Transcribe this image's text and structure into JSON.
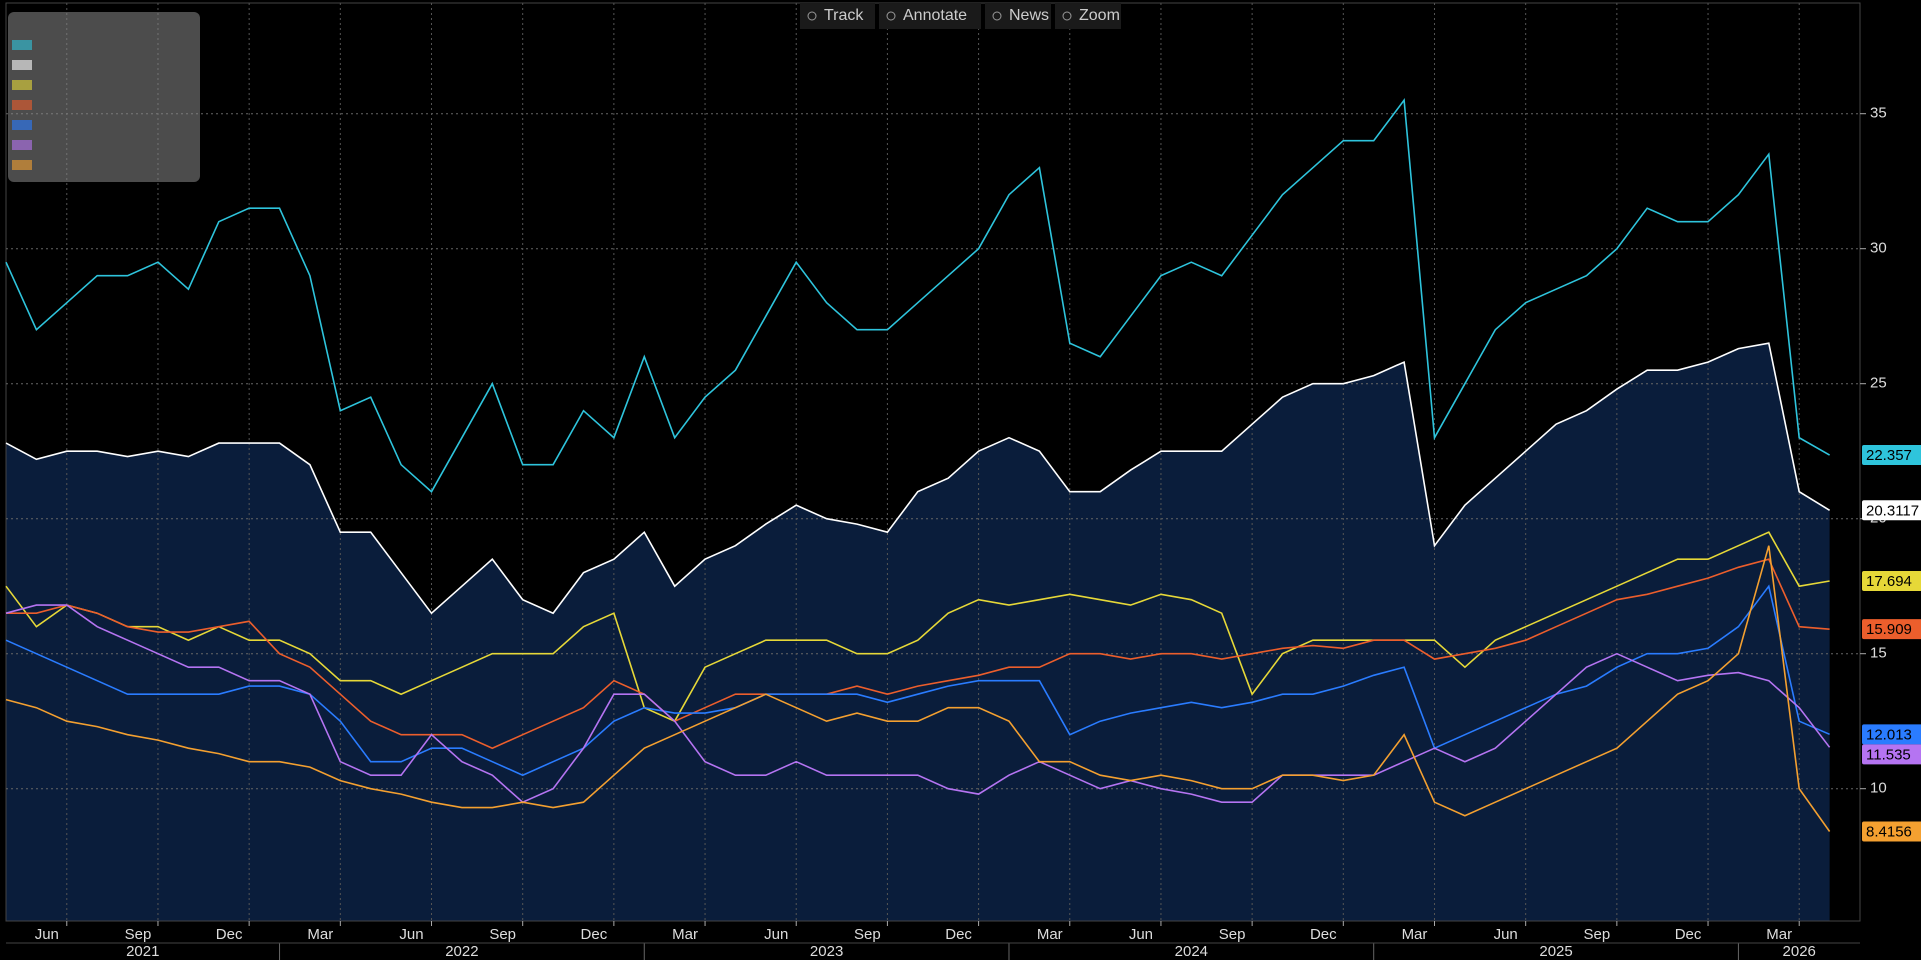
{
  "chart_data": {
    "type": "line",
    "toolbar": [
      "Track",
      "Annotate",
      "News",
      "Zoom"
    ],
    "x": [
      "2021-04",
      "2021-05",
      "2021-06",
      "2021-07",
      "2021-08",
      "2021-09",
      "2021-10",
      "2021-11",
      "2021-12",
      "2022-01",
      "2022-02",
      "2022-03",
      "2022-04",
      "2022-05",
      "2022-06",
      "2022-07",
      "2022-08",
      "2022-09",
      "2022-10",
      "2022-11",
      "2022-12",
      "2023-01",
      "2023-02",
      "2023-03",
      "2023-04",
      "2023-05",
      "2023-06",
      "2023-07",
      "2023-08",
      "2023-09",
      "2023-10",
      "2023-11",
      "2023-12",
      "2024-01",
      "2024-02",
      "2024-03",
      "2024-04",
      "2024-05",
      "2024-06",
      "2024-07",
      "2024-08",
      "2024-09",
      "2024-10",
      "2024-11",
      "2024-12",
      "2025-01",
      "2025-02",
      "2025-03",
      "2025-04",
      "2025-05",
      "2025-06",
      "2025-07",
      "2025-08",
      "2025-09",
      "2025-10",
      "2025-11",
      "2025-12",
      "2026-01",
      "2026-02",
      "2026-03",
      "2026-04"
    ],
    "series": [
      {
        "color": "#2ec4dc",
        "values": [
          29.5,
          27,
          28,
          29,
          29,
          29.5,
          28.5,
          31,
          31.5,
          31.5,
          29,
          24,
          24.5,
          22,
          21,
          23,
          25,
          22,
          22,
          24,
          23,
          26,
          23,
          24.5,
          25.5,
          27.5,
          29.5,
          28,
          27,
          27,
          28,
          29,
          30,
          32,
          33,
          26.5,
          26,
          27.5,
          29,
          29.5,
          29,
          30.5,
          32,
          33,
          34,
          34,
          35.5,
          23,
          25,
          27,
          28,
          28.5,
          29,
          30,
          31.5,
          31,
          31,
          32,
          33.5,
          23,
          22.357
        ]
      },
      {
        "color": "#ffffff",
        "area": true,
        "values": [
          22.8,
          22.2,
          22.5,
          22.5,
          22.3,
          22.5,
          22.3,
          22.8,
          22.8,
          22.8,
          22.0,
          19.5,
          19.5,
          18,
          16.5,
          17.5,
          18.5,
          17,
          16.5,
          18,
          18.5,
          19.5,
          17.5,
          18.5,
          19,
          19.8,
          20.5,
          20,
          19.8,
          19.5,
          21,
          21.5,
          22.5,
          23,
          22.5,
          21,
          21,
          21.8,
          22.5,
          22.5,
          22.5,
          23.5,
          24.5,
          25,
          25,
          25.3,
          25.8,
          19,
          20.5,
          21.5,
          22.5,
          23.5,
          24,
          24.8,
          25.5,
          25.5,
          25.8,
          26.3,
          26.5,
          21,
          20.3117
        ]
      },
      {
        "color": "#e6d838",
        "values": [
          17.5,
          16,
          16.8,
          16.5,
          16,
          16,
          15.5,
          16,
          15.5,
          15.5,
          15,
          14,
          14,
          13.5,
          14,
          14.5,
          15,
          15,
          15,
          16,
          16.5,
          13,
          12.5,
          14.5,
          15,
          15.5,
          15.5,
          15.5,
          15,
          15,
          15.5,
          16.5,
          17,
          16.8,
          17,
          17.2,
          17,
          16.8,
          17.2,
          17,
          16.5,
          13.5,
          15,
          15.5,
          15.5,
          15.5,
          15.5,
          15.5,
          14.5,
          15.5,
          16,
          16.5,
          17,
          17.5,
          18,
          18.5,
          18.5,
          19,
          19.5,
          17.5,
          17.694
        ]
      },
      {
        "color": "#ec5e2c",
        "values": [
          16.5,
          16.5,
          16.8,
          16.5,
          16,
          15.8,
          15.8,
          16,
          16.2,
          15,
          14.5,
          13.5,
          12.5,
          12,
          12,
          12,
          11.5,
          12,
          12.5,
          13,
          14,
          13.5,
          12.5,
          13,
          13.5,
          13.5,
          13.5,
          13.5,
          13.8,
          13.5,
          13.8,
          14,
          14.2,
          14.5,
          14.5,
          15,
          15,
          14.8,
          15,
          15,
          14.8,
          15,
          15.2,
          15.3,
          15.2,
          15.5,
          15.5,
          14.8,
          15,
          15.2,
          15.5,
          16,
          16.5,
          17,
          17.2,
          17.5,
          17.8,
          18.2,
          18.5,
          16,
          15.909
        ]
      },
      {
        "color": "#2a7cff",
        "values": [
          15.5,
          15,
          14.5,
          14,
          13.5,
          13.5,
          13.5,
          13.5,
          13.8,
          13.8,
          13.5,
          12.5,
          11,
          11,
          11.5,
          11.5,
          11,
          10.5,
          11,
          11.5,
          12.5,
          13,
          12.8,
          12.8,
          13,
          13.5,
          13.5,
          13.5,
          13.5,
          13.2,
          13.5,
          13.8,
          14,
          14,
          14,
          12,
          12.5,
          12.8,
          13,
          13.2,
          13,
          13.2,
          13.5,
          13.5,
          13.8,
          14.2,
          14.5,
          11.5,
          12,
          12.5,
          13,
          13.5,
          13.8,
          14.5,
          15,
          15,
          15.2,
          16,
          17.5,
          12.5,
          12.013
        ]
      },
      {
        "color": "#b574f2",
        "values": [
          16.5,
          16.8,
          16.8,
          16,
          15.5,
          15,
          14.5,
          14.5,
          14,
          14,
          13.5,
          11,
          10.5,
          10.5,
          12,
          11,
          10.5,
          9.5,
          10,
          11.5,
          13.5,
          13.5,
          12.5,
          11,
          10.5,
          10.5,
          11,
          10.5,
          10.5,
          10.5,
          10.5,
          10,
          9.8,
          10.5,
          11,
          10.5,
          10,
          10.3,
          10,
          9.8,
          9.5,
          9.5,
          10.5,
          10.5,
          10.5,
          10.5,
          11,
          11.5,
          11,
          11.5,
          12.5,
          13.5,
          14.5,
          15,
          14.5,
          14,
          14.2,
          14.3,
          14,
          13,
          11.535
        ]
      },
      {
        "color": "#f4a030",
        "values": [
          13.3,
          13,
          12.5,
          12.3,
          12,
          11.8,
          11.5,
          11.3,
          11,
          11,
          10.8,
          10.3,
          10,
          9.8,
          9.5,
          9.3,
          9.3,
          9.5,
          9.3,
          9.5,
          10.5,
          11.5,
          12,
          12.5,
          13,
          13.5,
          13,
          12.5,
          12.8,
          12.5,
          12.5,
          13,
          13,
          12.5,
          11,
          11,
          10.5,
          10.3,
          10.5,
          10.3,
          10,
          10,
          10.5,
          10.5,
          10.3,
          10.5,
          12,
          9.5,
          9,
          9.5,
          10,
          10.5,
          11,
          11.5,
          12.5,
          13.5,
          14,
          15,
          19,
          10,
          8.4156
        ]
      }
    ],
    "xlim": [
      "2021-04",
      "2026-05"
    ],
    "xticks": [
      {
        "value": "2021-06",
        "label": "Jun"
      },
      {
        "value": "2021-09",
        "label": "Sep"
      },
      {
        "value": "2021-12",
        "label": "Dec"
      },
      {
        "value": "2022-03",
        "label": "Mar"
      },
      {
        "value": "2022-06",
        "label": "Jun"
      },
      {
        "value": "2022-09",
        "label": "Sep"
      },
      {
        "value": "2022-12",
        "label": "Dec"
      },
      {
        "value": "2023-03",
        "label": "Mar"
      },
      {
        "value": "2023-06",
        "label": "Jun"
      },
      {
        "value": "2023-09",
        "label": "Sep"
      },
      {
        "value": "2023-12",
        "label": "Dec"
      },
      {
        "value": "2024-03",
        "label": "Mar"
      },
      {
        "value": "2024-06",
        "label": "Jun"
      },
      {
        "value": "2024-09",
        "label": "Sep"
      },
      {
        "value": "2024-12",
        "label": "Dec"
      },
      {
        "value": "2025-03",
        "label": "Mar"
      },
      {
        "value": "2025-06",
        "label": "Jun"
      },
      {
        "value": "2025-09",
        "label": "Sep"
      },
      {
        "value": "2025-12",
        "label": "Dec"
      },
      {
        "value": "2026-03",
        "label": "Mar"
      }
    ],
    "years": [
      "2021",
      "2022",
      "2023",
      "2024",
      "2025",
      "2026"
    ],
    "ylim": [
      5.1,
      39.1
    ],
    "yticks": [
      10,
      15,
      20,
      25,
      30,
      35
    ],
    "grid": true
  }
}
